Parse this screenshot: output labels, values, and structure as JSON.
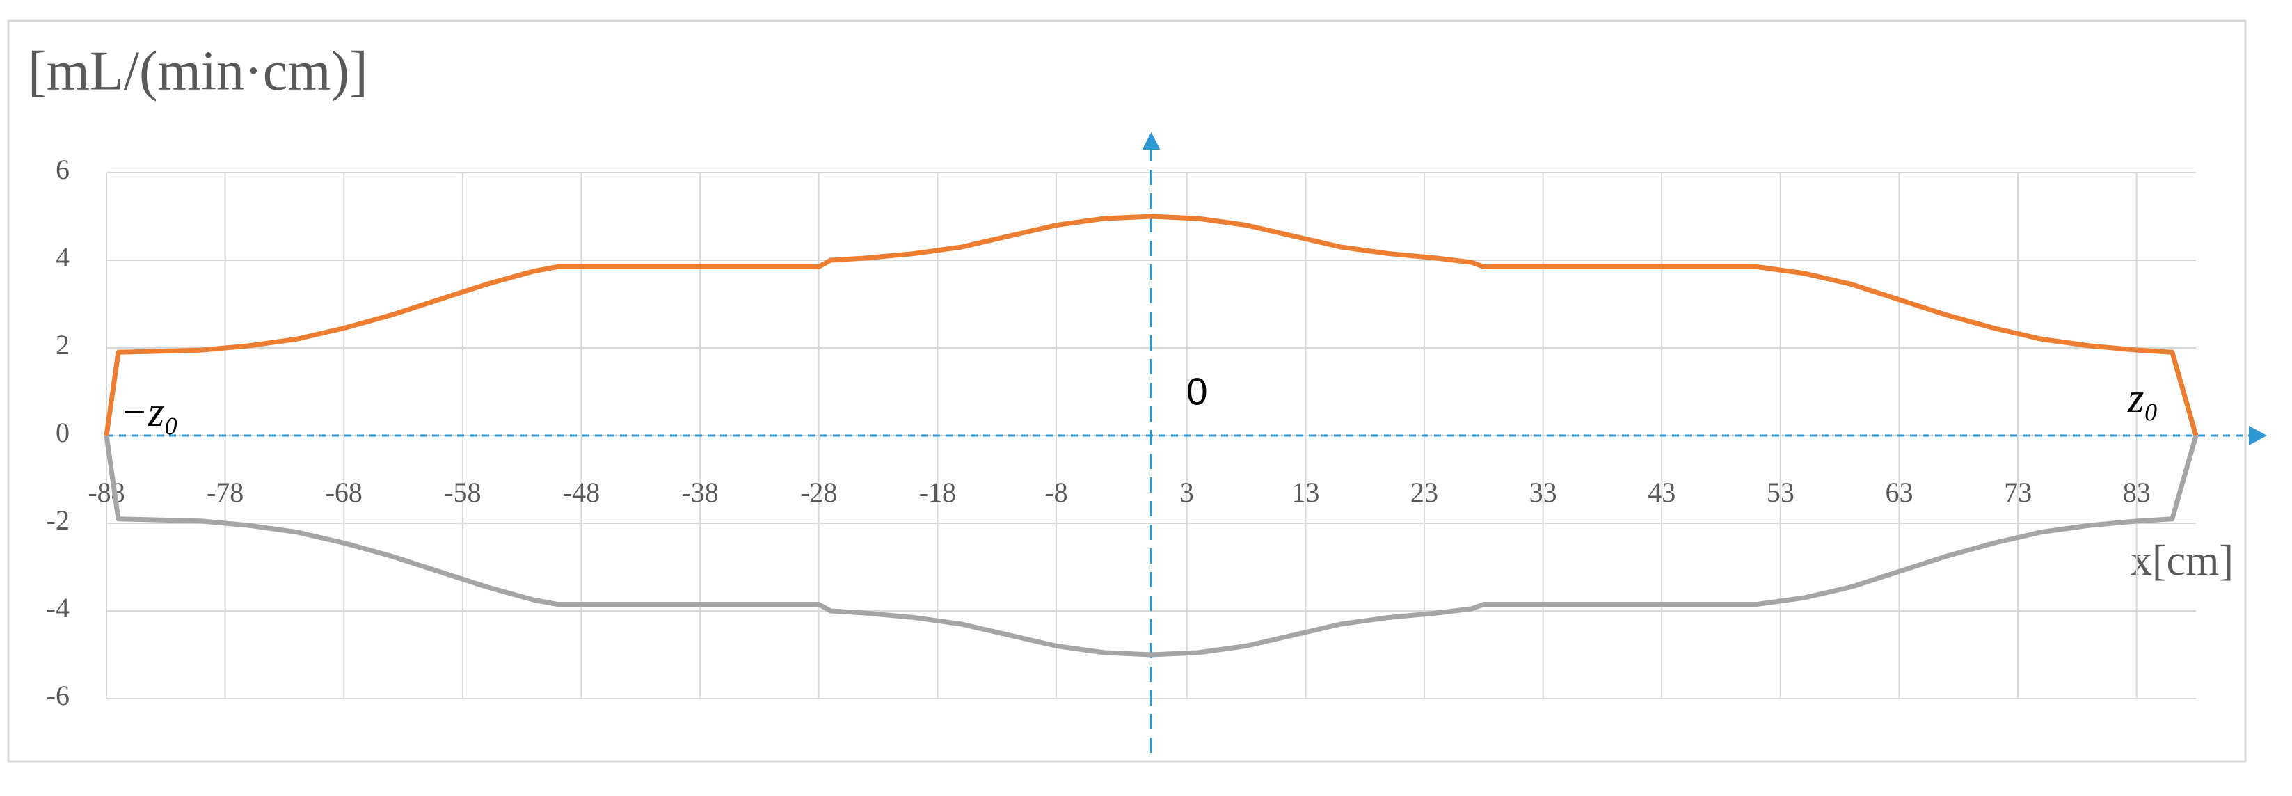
{
  "chart_data": {
    "type": "line",
    "ylabel": "[mL/(min·cm)]",
    "xlabel": "x[cm]",
    "annotations": [
      "0",
      "−z₀",
      "z₀"
    ],
    "x": [
      -88,
      -87,
      -84,
      -80,
      -76,
      -72,
      -68,
      -64,
      -60,
      -56,
      -52,
      -50,
      -28,
      -27,
      -24,
      -20,
      -16,
      -12,
      -8,
      -4,
      0,
      4,
      8,
      12,
      16,
      20,
      24,
      27,
      28,
      51,
      55,
      59,
      63,
      67,
      71,
      75,
      79,
      83,
      86,
      88
    ],
    "series": [
      {
        "color": "#ed7d31",
        "values": [
          0,
          1.9,
          1.92,
          1.95,
          2.05,
          2.2,
          2.45,
          2.75,
          3.1,
          3.45,
          3.75,
          3.85,
          3.85,
          4.0,
          4.05,
          4.15,
          4.3,
          4.55,
          4.8,
          4.95,
          5.0,
          4.95,
          4.8,
          4.55,
          4.3,
          4.15,
          4.05,
          3.95,
          3.85,
          3.85,
          3.7,
          3.45,
          3.1,
          2.75,
          2.45,
          2.2,
          2.05,
          1.95,
          1.9,
          0
        ]
      },
      {
        "color": "#a5a5a5",
        "values": [
          0,
          -1.9,
          -1.92,
          -1.95,
          -2.05,
          -2.2,
          -2.45,
          -2.75,
          -3.1,
          -3.45,
          -3.75,
          -3.85,
          -3.85,
          -4.0,
          -4.05,
          -4.15,
          -4.3,
          -4.55,
          -4.8,
          -4.95,
          -5.0,
          -4.95,
          -4.8,
          -4.55,
          -4.3,
          -4.15,
          -4.05,
          -3.95,
          -3.85,
          -3.85,
          -3.7,
          -3.45,
          -3.1,
          -2.75,
          -2.45,
          -2.2,
          -2.05,
          -1.95,
          -1.9,
          0
        ]
      }
    ],
    "xlim": [
      -88,
      88
    ],
    "xticks": [
      -88,
      -78,
      -68,
      -58,
      -48,
      -38,
      -28,
      -18,
      -8,
      3,
      13,
      23,
      33,
      43,
      53,
      63,
      73,
      83
    ],
    "ylim": [
      -6,
      6
    ],
    "yticks": [
      -6,
      -4,
      -2,
      0,
      2,
      4,
      6
    ],
    "grid": true,
    "axis_color": "#2e97d4"
  }
}
